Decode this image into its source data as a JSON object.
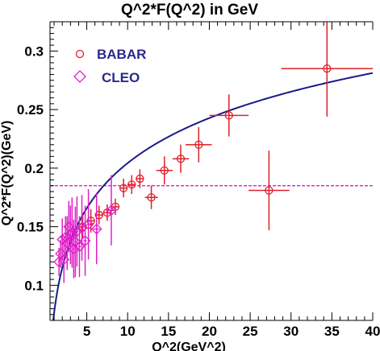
{
  "chart_data": {
    "type": "scatter",
    "title": "Q^2*F(Q^2) in GeV",
    "xlabel": "Q^2(GeV^2)",
    "ylabel": "Q^2*F(Q^2)(GeV)",
    "xlim": [
      0.5,
      40
    ],
    "ylim": [
      0.07,
      0.325
    ],
    "xticks": [
      5,
      10,
      15,
      20,
      25,
      30,
      35,
      40
    ],
    "yticks": [
      0.1,
      0.15,
      0.2,
      0.25,
      0.3
    ],
    "ytick_labels": [
      "0.1",
      "0.15",
      "0.2",
      "0.25",
      "0.3"
    ],
    "grid": false,
    "legend_position": "top-left",
    "series": [
      {
        "name": "BABAR",
        "marker": "circle",
        "color": "#e0202a",
        "points": [
          {
            "x": 4.5,
            "y": 0.15,
            "xerr": 0.5,
            "yerr": 0.01
          },
          {
            "x": 5.5,
            "y": 0.155,
            "xerr": 0.5,
            "yerr": 0.01
          },
          {
            "x": 6.5,
            "y": 0.16,
            "xerr": 0.5,
            "yerr": 0.008
          },
          {
            "x": 7.5,
            "y": 0.162,
            "xerr": 0.5,
            "yerr": 0.007
          },
          {
            "x": 8.5,
            "y": 0.167,
            "xerr": 0.5,
            "yerr": 0.007
          },
          {
            "x": 9.5,
            "y": 0.183,
            "xerr": 0.5,
            "yerr": 0.008
          },
          {
            "x": 10.5,
            "y": 0.186,
            "xerr": 0.5,
            "yerr": 0.008
          },
          {
            "x": 11.5,
            "y": 0.191,
            "xerr": 0.5,
            "yerr": 0.008
          },
          {
            "x": 12.9,
            "y": 0.175,
            "xerr": 0.8,
            "yerr": 0.01
          },
          {
            "x": 14.5,
            "y": 0.198,
            "xerr": 1.0,
            "yerr": 0.012
          },
          {
            "x": 16.5,
            "y": 0.208,
            "xerr": 1.0,
            "yerr": 0.012
          },
          {
            "x": 18.7,
            "y": 0.22,
            "xerr": 1.6,
            "yerr": 0.015
          },
          {
            "x": 22.4,
            "y": 0.245,
            "xerr": 2.4,
            "yerr": 0.018
          },
          {
            "x": 27.3,
            "y": 0.181,
            "xerr": 2.5,
            "yerr": 0.034
          },
          {
            "x": 34.4,
            "y": 0.285,
            "xerr": 5.6,
            "yerr": 0.041
          }
        ]
      },
      {
        "name": "CLEO",
        "marker": "diamond",
        "color": "#e020c8",
        "points": [
          {
            "x": 1.6,
            "y": 0.12,
            "xerr": 0.1,
            "yerr": 0.012
          },
          {
            "x": 1.8,
            "y": 0.127,
            "xerr": 0.1,
            "yerr": 0.012
          },
          {
            "x": 2.0,
            "y": 0.139,
            "xerr": 0.1,
            "yerr": 0.018
          },
          {
            "x": 2.2,
            "y": 0.122,
            "xerr": 0.1,
            "yerr": 0.02
          },
          {
            "x": 2.4,
            "y": 0.141,
            "xerr": 0.1,
            "yerr": 0.018
          },
          {
            "x": 2.6,
            "y": 0.136,
            "xerr": 0.1,
            "yerr": 0.023
          },
          {
            "x": 2.8,
            "y": 0.15,
            "xerr": 0.1,
            "yerr": 0.022
          },
          {
            "x": 3.0,
            "y": 0.143,
            "xerr": 0.1,
            "yerr": 0.025
          },
          {
            "x": 3.2,
            "y": 0.145,
            "xerr": 0.1,
            "yerr": 0.03
          },
          {
            "x": 3.4,
            "y": 0.131,
            "xerr": 0.1,
            "yerr": 0.025
          },
          {
            "x": 3.6,
            "y": 0.137,
            "xerr": 0.1,
            "yerr": 0.03
          },
          {
            "x": 3.8,
            "y": 0.146,
            "xerr": 0.15,
            "yerr": 0.03
          },
          {
            "x": 4.1,
            "y": 0.133,
            "xerr": 0.15,
            "yerr": 0.026
          },
          {
            "x": 4.4,
            "y": 0.149,
            "xerr": 0.15,
            "yerr": 0.028
          },
          {
            "x": 4.8,
            "y": 0.138,
            "xerr": 0.2,
            "yerr": 0.03
          },
          {
            "x": 5.2,
            "y": 0.152,
            "xerr": 0.2,
            "yerr": 0.03
          },
          {
            "x": 6.2,
            "y": 0.148,
            "xerr": 0.4,
            "yerr": 0.03
          },
          {
            "x": 8.0,
            "y": 0.164,
            "xerr": 0.5,
            "yerr": 0.03
          }
        ]
      }
    ],
    "lines": [
      {
        "kind": "fit-curve",
        "color": "#1a1a8a"
      },
      {
        "kind": "horizontal-dashed",
        "y": 0.185,
        "color": "#e020c8"
      }
    ]
  }
}
